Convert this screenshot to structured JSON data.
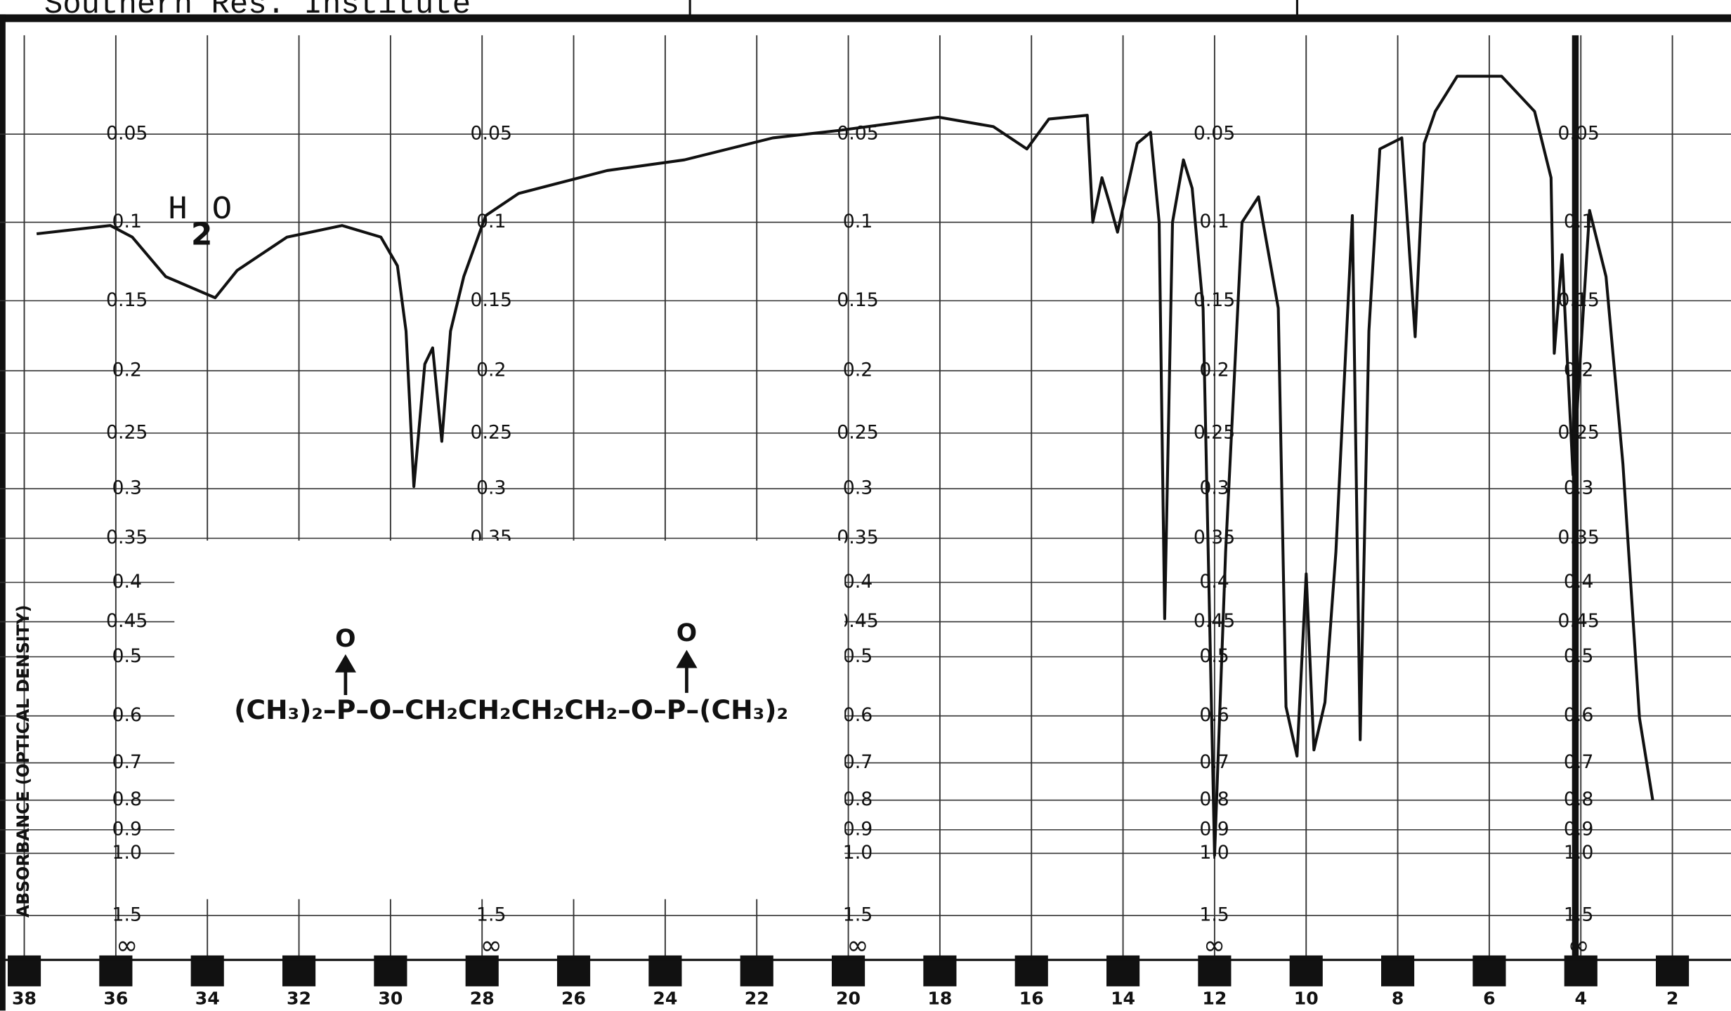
{
  "header": {
    "source": "Southern Res. Institute"
  },
  "chart_data": {
    "type": "line",
    "y_label": "ABSORBANCE (OPTICAL DENSITY)",
    "y_scale": "absorbance",
    "annotation": {
      "water": "H",
      "water_sub": "2",
      "water_end": "O"
    },
    "structure": {
      "left": "(CH₃)₂–P–O–CH₂CH₂CH₂CH₂–O–P–(CH₃)₂",
      "oxygen": "O"
    },
    "bottom_label": "∞",
    "xlim": [
      38.53,
      0.72
    ],
    "xticks": [
      38,
      36,
      34,
      32,
      30,
      28,
      26,
      24,
      22,
      20,
      18,
      16,
      14,
      12,
      10,
      8,
      6,
      4,
      2
    ],
    "ylim": [
      0,
      3
    ],
    "yticks": [
      0.05,
      0.1,
      0.15,
      0.2,
      0.25,
      0.3,
      0.35,
      0.4,
      0.45,
      0.5,
      0.6,
      0.7,
      0.8,
      0.9,
      {
        "value": 1,
        "label": "1.0"
      },
      1.5
    ],
    "grid": true,
    "x": [
      37.73,
      36.12,
      35.64,
      34.91,
      33.83,
      33.35,
      32.26,
      31.06,
      30.21,
      29.85,
      29.66,
      29.49,
      29.25,
      29.08,
      28.88,
      28.69,
      28.4,
      27.92,
      27.2,
      25.27,
      23.58,
      21.65,
      20.2,
      18.03,
      16.83,
      16.1,
      15.62,
      14.78,
      14.66,
      14.46,
      14.29,
      14.12,
      13.69,
      13.4,
      13.21,
      13.09,
      12.92,
      12.68,
      12.49,
      12.25,
      12.0,
      11.76,
      11.4,
      11.04,
      10.61,
      10.44,
      10.2,
      10.0,
      9.83,
      9.59,
      9.35,
      8.99,
      8.82,
      8.63,
      8.39,
      7.91,
      7.62,
      7.42,
      7.18,
      6.7,
      5.73,
      5.01,
      4.65,
      4.58,
      4.41,
      4.17,
      3.81,
      3.45,
      3.08,
      2.72,
      2.43
    ],
    "series": [
      {
        "color": "#111111",
        "values": [
          0.107,
          0.102,
          0.109,
          0.134,
          0.148,
          0.13,
          0.109,
          0.102,
          0.109,
          0.127,
          0.171,
          0.298,
          0.195,
          0.183,
          0.257,
          0.171,
          0.134,
          0.096,
          0.083,
          0.07,
          0.064,
          0.052,
          0.048,
          0.041,
          0.046,
          0.058,
          0.042,
          0.04,
          0.1,
          0.074,
          0.089,
          0.106,
          0.055,
          0.049,
          0.1,
          0.446,
          0.1,
          0.064,
          0.08,
          0.155,
          1.01,
          0.365,
          0.1,
          0.085,
          0.155,
          0.583,
          0.684,
          0.39,
          0.67,
          0.575,
          0.365,
          0.096,
          0.648,
          0.171,
          0.058,
          0.052,
          0.175,
          0.055,
          0.038,
          0.02,
          0.02,
          0.038,
          0.074,
          0.187,
          0.12,
          0.287,
          0.093,
          0.134,
          0.277,
          0.604,
          0.8
        ]
      }
    ]
  }
}
